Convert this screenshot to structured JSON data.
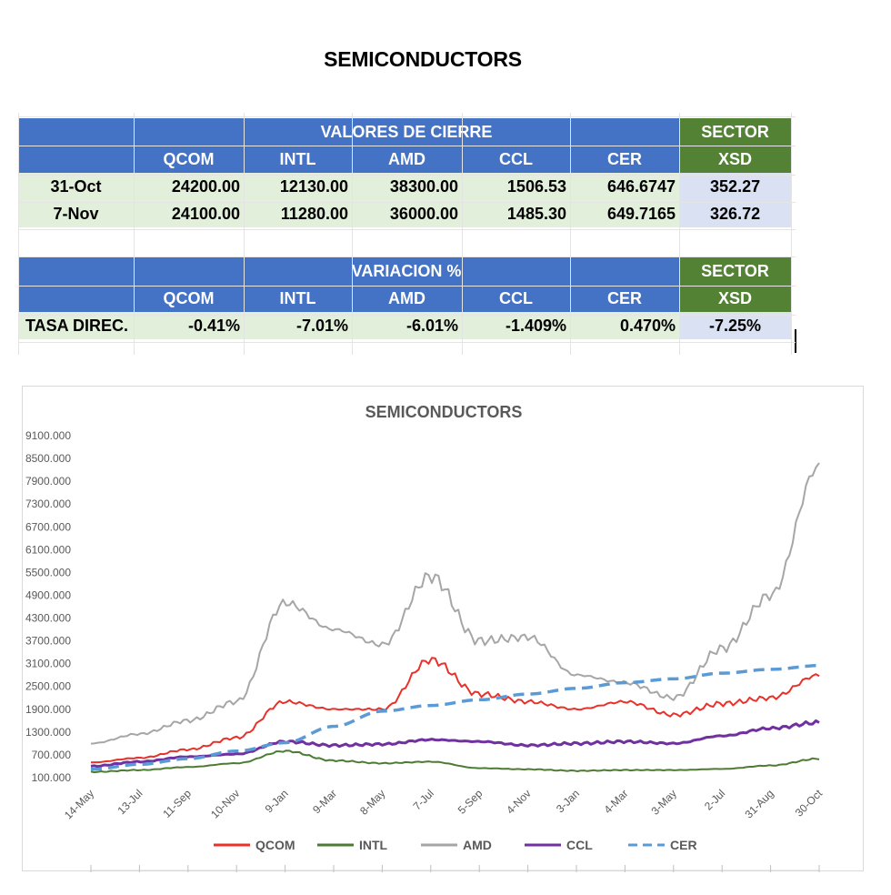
{
  "page_title": "SEMICONDUCTORS",
  "closing_table": {
    "group_header": "VALORES DE CIERRE",
    "sector_header": "SECTOR",
    "columns": [
      "QCOM",
      "INTL",
      "AMD",
      "CCL",
      "CER"
    ],
    "sector_column": "XSD",
    "rows": [
      {
        "label": "31-Oct",
        "values": [
          "24200.00",
          "12130.00",
          "38300.00",
          "1506.53",
          "646.6747"
        ],
        "sector": "352.27"
      },
      {
        "label": "7-Nov",
        "values": [
          "24100.00",
          "11280.00",
          "36000.00",
          "1485.30",
          "649.7165"
        ],
        "sector": "326.72"
      }
    ]
  },
  "variation_table": {
    "group_header": "VARIACION %",
    "sector_header": "SECTOR",
    "columns": [
      "QCOM",
      "INTL",
      "AMD",
      "CCL",
      "CER"
    ],
    "sector_column": "XSD",
    "row": {
      "label": "TASA DIREC.",
      "values": [
        "-0.41%",
        "-7.01%",
        "-6.01%",
        "-1.409%",
        "0.470%"
      ],
      "sector": "-7.25%"
    }
  },
  "chart_data": {
    "type": "line",
    "title": "SEMICONDUCTORS",
    "xlabel": "",
    "ylabel": "",
    "ylim": [
      100,
      9100
    ],
    "y_ticks": [
      "9100.000",
      "8500.000",
      "7900.000",
      "7300.000",
      "6700.000",
      "6100.000",
      "5500.000",
      "4900.000",
      "4300.000",
      "3700.000",
      "3100.000",
      "2500.000",
      "1900.000",
      "1300.000",
      "700.000",
      "100.000"
    ],
    "categories": [
      "14-May",
      "13-Jul",
      "11-Sep",
      "10-Nov",
      "9-Jan",
      "9-Mar",
      "8-May",
      "7-Jul",
      "5-Sep",
      "4-Nov",
      "3-Jan",
      "4-Mar",
      "3-May",
      "2-Jul",
      "31-Aug",
      "30-Oct"
    ],
    "legend_position": "bottom",
    "grid": false,
    "series": [
      {
        "name": "QCOM",
        "color": "#e8312a",
        "dashed": false,
        "values": [
          500,
          620,
          840,
          1150,
          2100,
          1900,
          1900,
          3200,
          2300,
          2100,
          1900,
          2100,
          1750,
          2050,
          2200,
          2800
        ]
      },
      {
        "name": "INTL",
        "color": "#4e7b33",
        "dashed": false,
        "values": [
          250,
          300,
          380,
          480,
          800,
          550,
          480,
          520,
          350,
          320,
          280,
          300,
          300,
          330,
          420,
          600
        ]
      },
      {
        "name": "AMD",
        "color": "#a6a6a6",
        "dashed": false,
        "values": [
          1000,
          1250,
          1600,
          2100,
          4700,
          4000,
          3600,
          5400,
          3700,
          3800,
          2800,
          2600,
          2200,
          3500,
          4900,
          8300
        ]
      },
      {
        "name": "CCL",
        "color": "#7030a0",
        "dashed": false,
        "values": [
          400,
          520,
          650,
          720,
          1050,
          950,
          980,
          1100,
          1050,
          950,
          1000,
          1050,
          1000,
          1200,
          1400,
          1550
        ]
      },
      {
        "name": "CER",
        "color": "#5b9bd5",
        "dashed": true,
        "values": [
          320,
          450,
          600,
          800,
          1020,
          1450,
          1850,
          2000,
          2150,
          2300,
          2450,
          2600,
          2700,
          2850,
          2950,
          3050
        ]
      }
    ]
  }
}
